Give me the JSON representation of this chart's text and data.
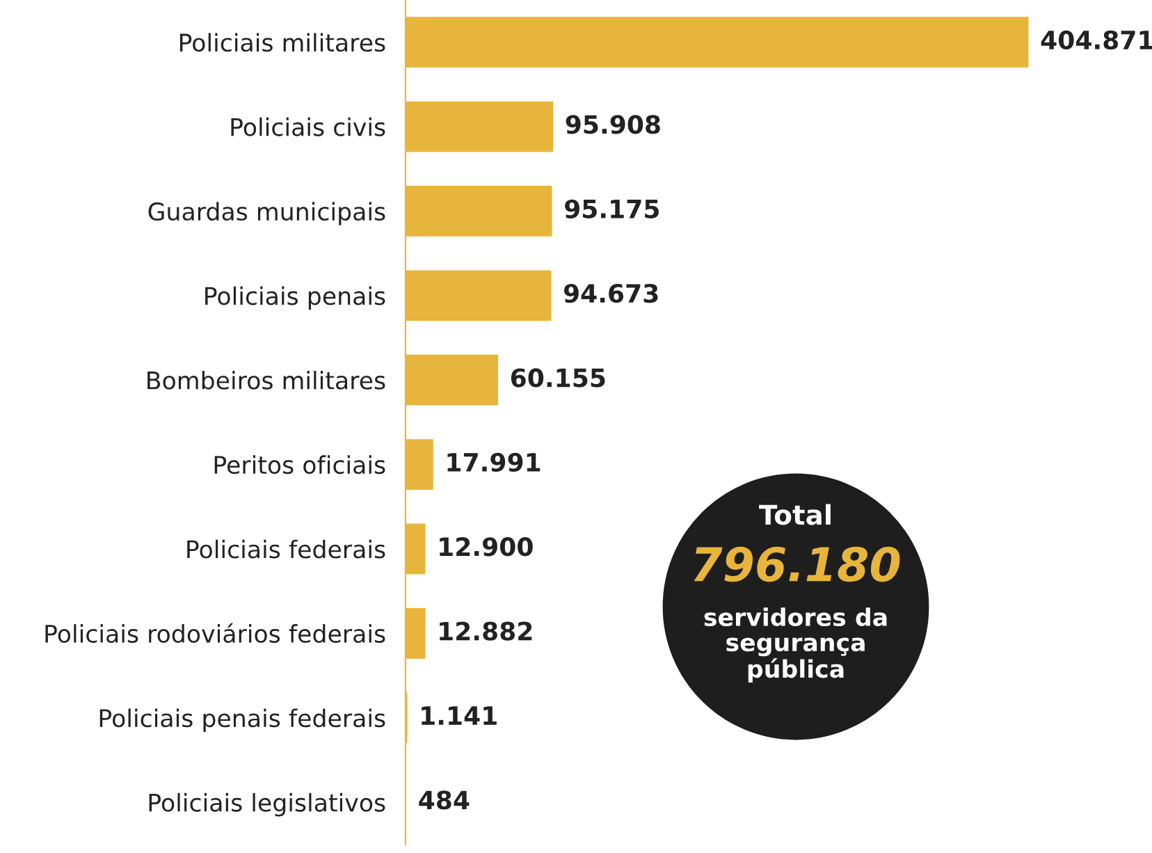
{
  "chart_data": {
    "type": "bar",
    "orientation": "horizontal",
    "categories": [
      "Policiais militares",
      "Policiais civis",
      "Guardas municipais",
      "Policiais penais",
      "Bombeiros militares",
      "Peritos oficiais",
      "Policiais federais",
      "Policiais rodoviários federais",
      "Policiais penais federais",
      "Policiais legislativos"
    ],
    "values": [
      404871,
      95908,
      95175,
      94673,
      60155,
      17991,
      12900,
      12882,
      1141,
      484
    ],
    "value_labels": [
      "404.871",
      "95.908",
      "95.175",
      "94.673",
      "60.155",
      "17.991",
      "12.900",
      "12.882",
      "1.141",
      "484"
    ],
    "color": "#e8b53c",
    "annotations": [
      "Total",
      "796.180",
      "servidores da\nsegurança\npública"
    ],
    "grid": false,
    "legend": false
  }
}
